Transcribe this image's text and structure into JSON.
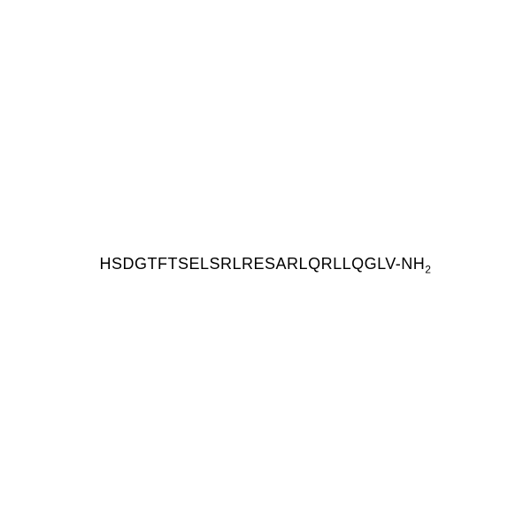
{
  "sequence": {
    "main": "HSDGTFTSELSRLRESARLQRLLQGLV-NH",
    "subscript": "2",
    "font_size": 18,
    "color": "#000000",
    "background_color": "#ffffff",
    "font_family": "Arial, Helvetica, sans-serif",
    "letter_spacing": 0.5
  }
}
